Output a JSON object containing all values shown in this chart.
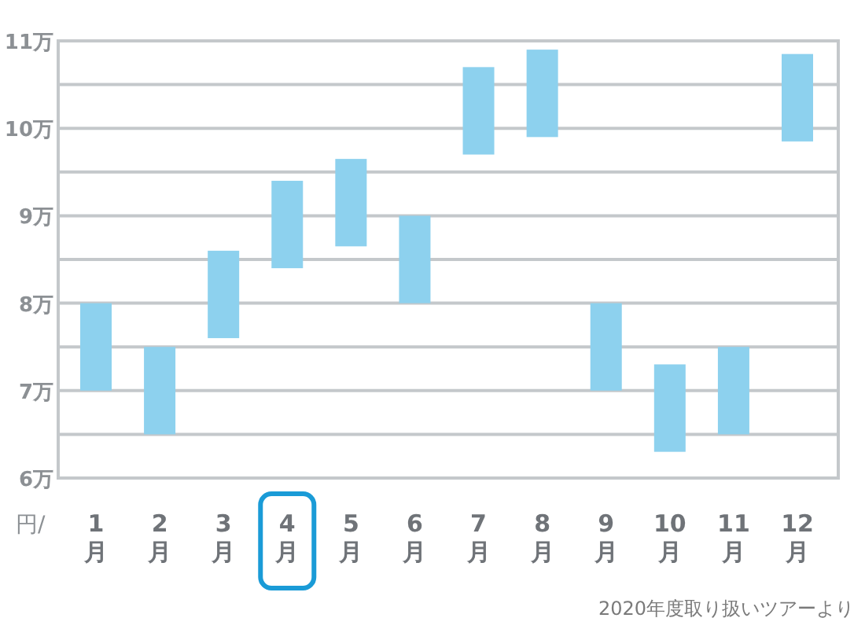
{
  "chart_data": {
    "type": "bar",
    "ylabel": "円/",
    "categories": [
      "1月",
      "2月",
      "3月",
      "4月",
      "5月",
      "6月",
      "7月",
      "8月",
      "9月",
      "10月",
      "11月",
      "12月"
    ],
    "base": [
      7,
      6.5,
      7.6,
      8.4,
      8.65,
      8,
      9.7,
      9.9,
      7,
      6.3,
      6.5,
      9.85
    ],
    "values": [
      1,
      1,
      1,
      1,
      1,
      1,
      1,
      1,
      1,
      1,
      1,
      1
    ],
    "color": "#8dd1ee",
    "ylim": [
      6,
      11
    ],
    "yticks": [
      {
        "value": 6,
        "label": "6万"
      },
      {
        "value": 6.5,
        "label": null
      },
      {
        "value": 7,
        "label": "7万"
      },
      {
        "value": 7.5,
        "label": null
      },
      {
        "value": 8,
        "label": "8万"
      },
      {
        "value": 8.5,
        "label": null
      },
      {
        "value": 9,
        "label": "9万"
      },
      {
        "value": 9.5,
        "label": null
      },
      {
        "value": 10,
        "label": "10万"
      },
      {
        "value": 10.5,
        "label": null
      },
      {
        "value": 11,
        "label": "11万"
      }
    ],
    "grid": "y",
    "annotations": [
      "2020年度取り扱いツアーより"
    ]
  }
}
